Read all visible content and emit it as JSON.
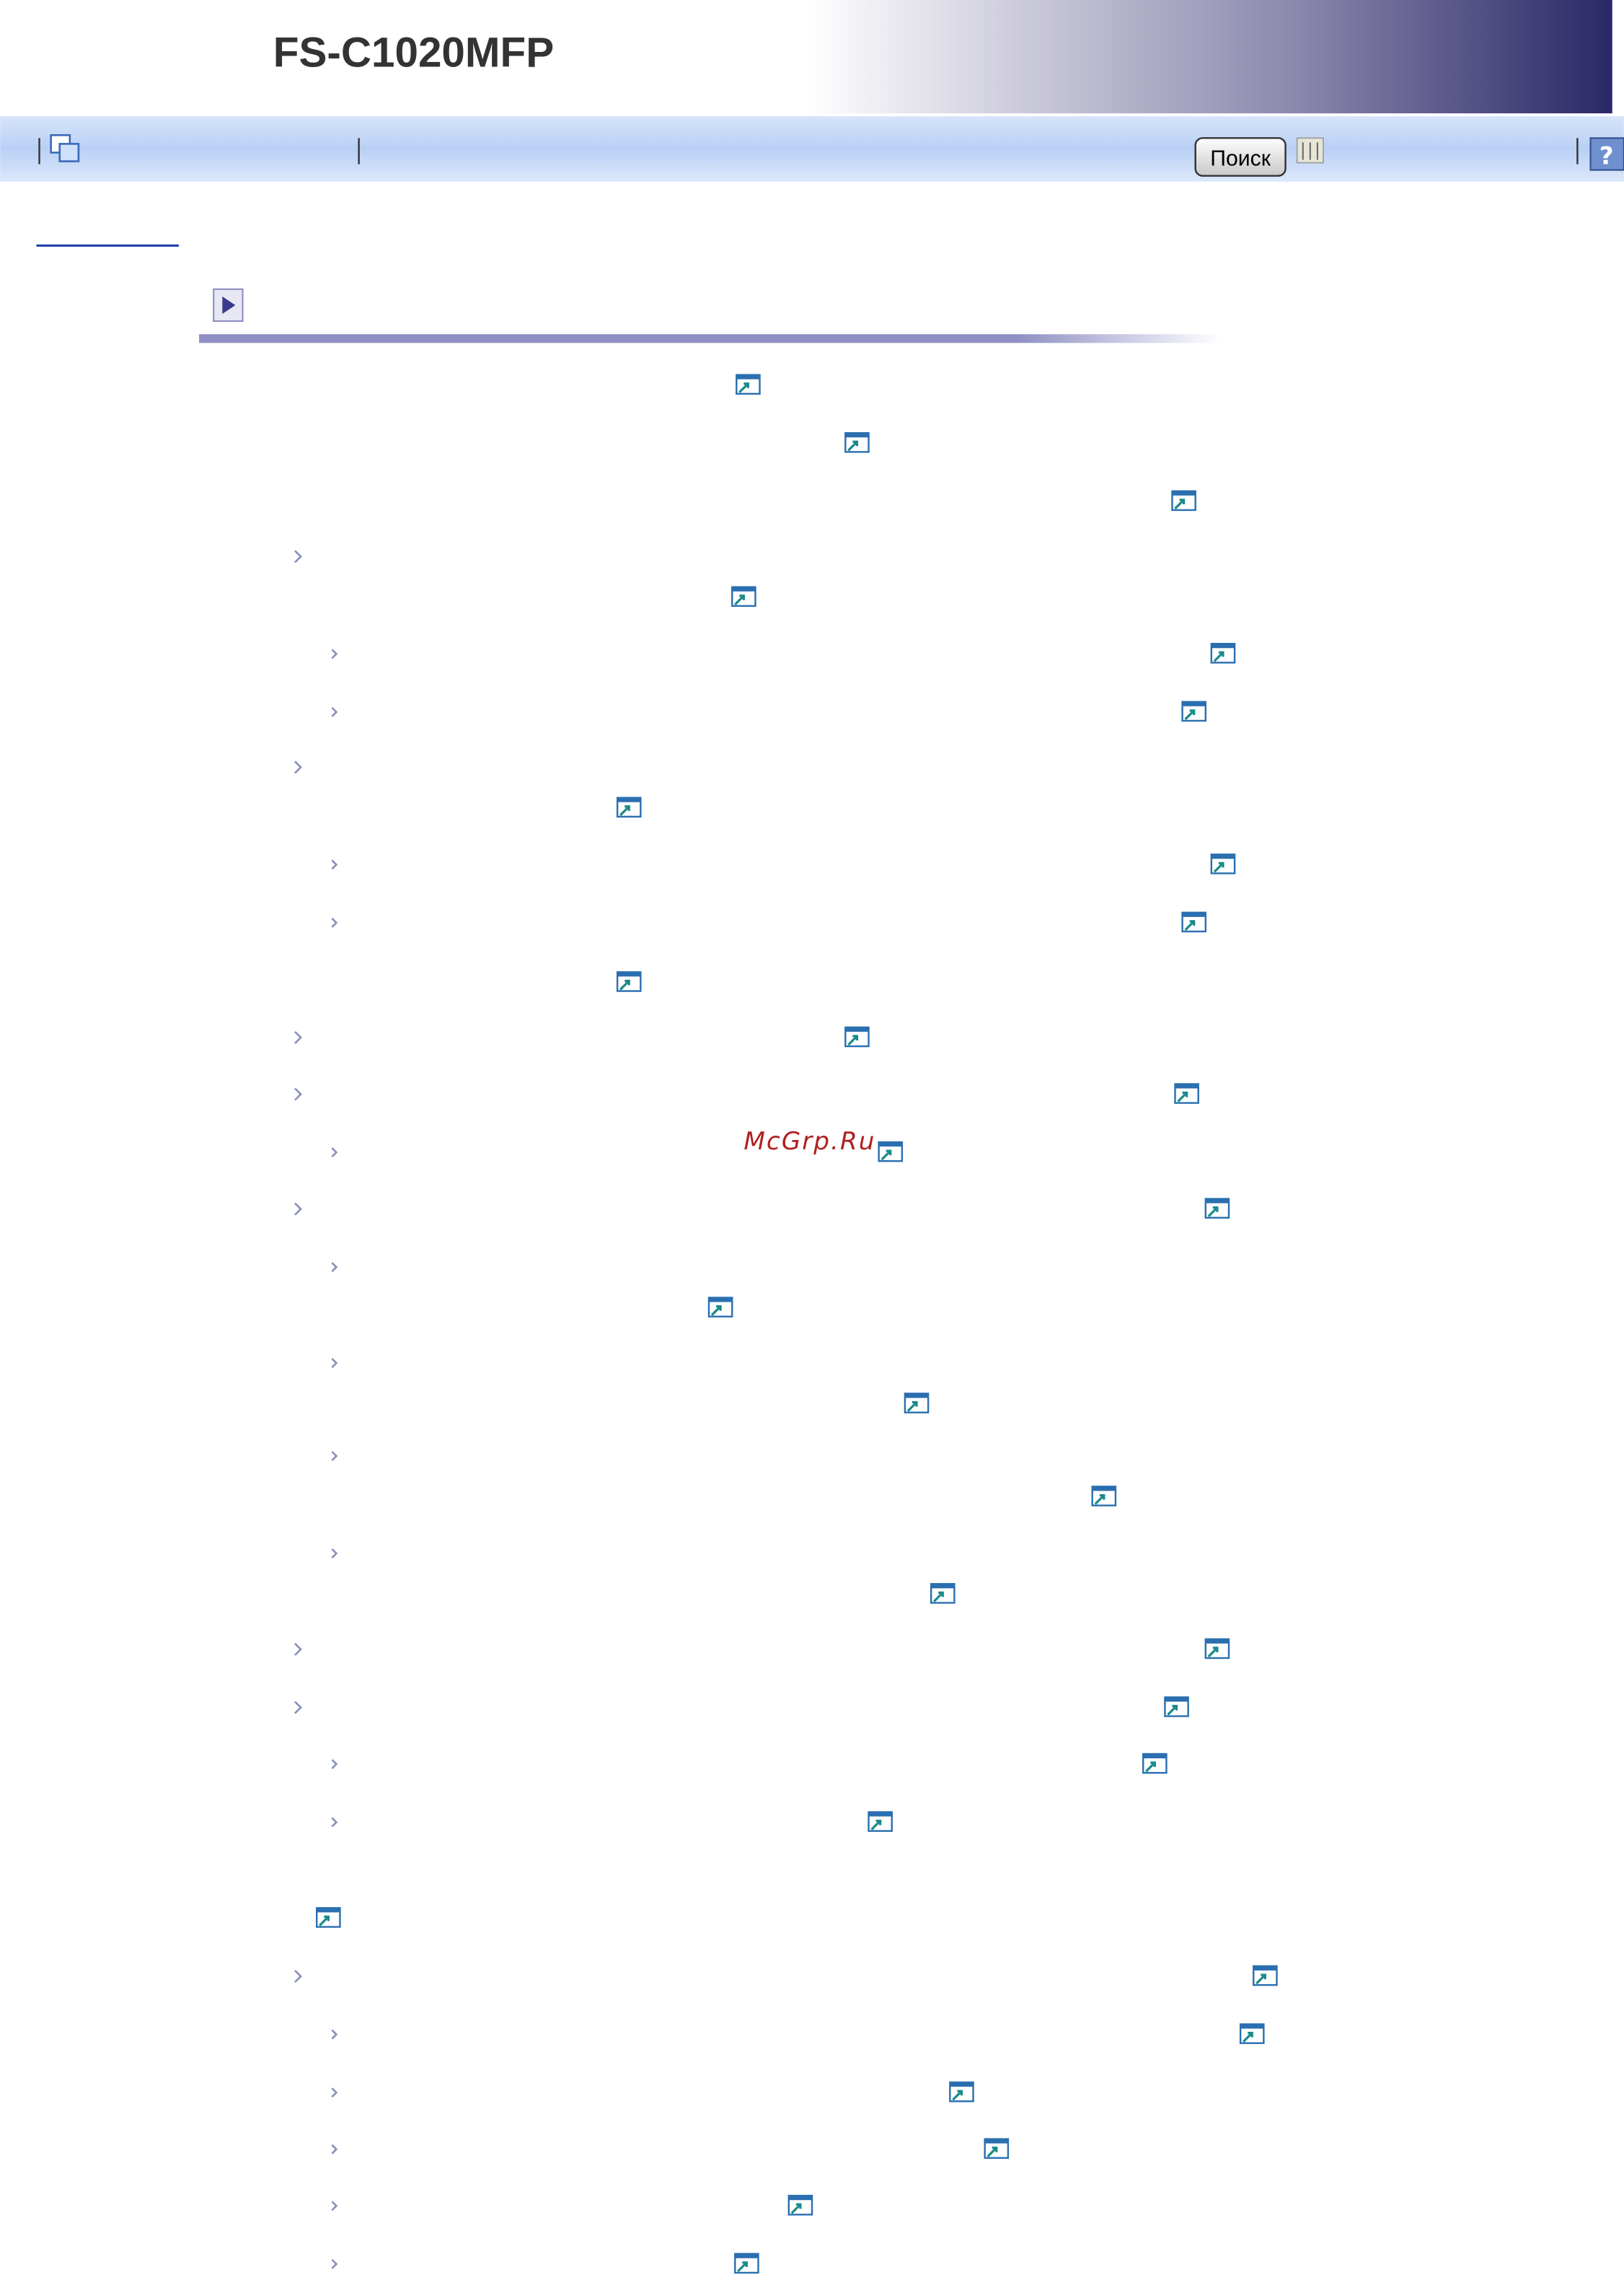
{
  "header": {
    "title": "FS-C1020MFP"
  },
  "toolbar": {
    "search_button": "Поиск"
  },
  "watermark": "McGrp.Ru"
}
